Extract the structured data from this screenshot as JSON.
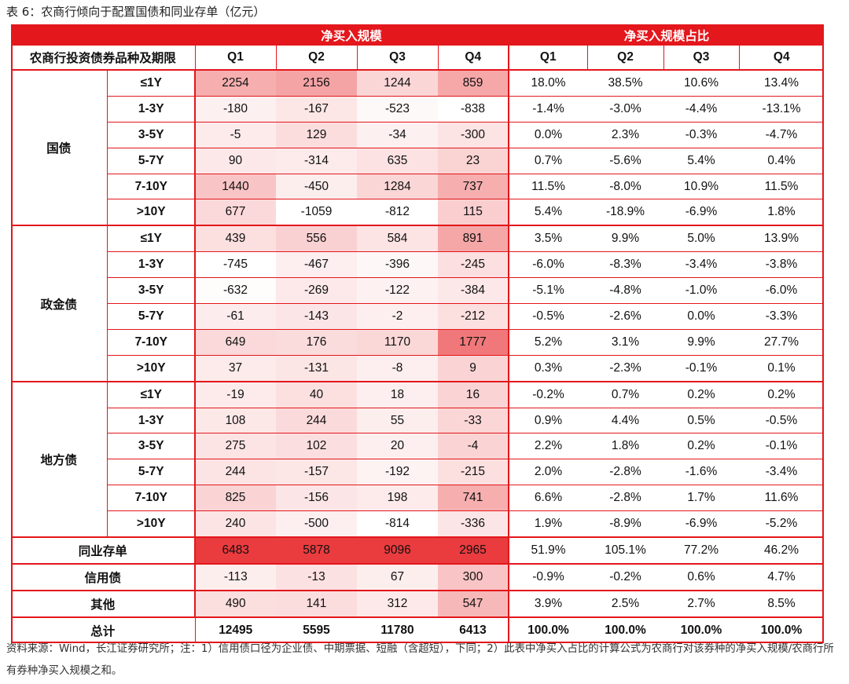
{
  "title": "表 6：农商行倾向于配置国债和同业存单（亿元）",
  "header": {
    "group_left": "净买入规模",
    "group_right": "净买入规模占比",
    "row_label": "农商行投资债券品种及期限",
    "quarters": [
      "Q1",
      "Q2",
      "Q3",
      "Q4"
    ]
  },
  "groups": [
    {
      "name": "国债",
      "rows": [
        {
          "term": "≤1Y",
          "values": [
            2254,
            2156,
            1244,
            859
          ],
          "shares": [
            "18.0%",
            "38.5%",
            "10.6%",
            "13.4%"
          ]
        },
        {
          "term": "1-3Y",
          "values": [
            -180,
            -167,
            -523,
            -838
          ],
          "shares": [
            "-1.4%",
            "-3.0%",
            "-4.4%",
            "-13.1%"
          ]
        },
        {
          "term": "3-5Y",
          "values": [
            -5,
            129,
            -34,
            -300
          ],
          "shares": [
            "0.0%",
            "2.3%",
            "-0.3%",
            "-4.7%"
          ]
        },
        {
          "term": "5-7Y",
          "values": [
            90,
            -314,
            635,
            23
          ],
          "shares": [
            "0.7%",
            "-5.6%",
            "5.4%",
            "0.4%"
          ]
        },
        {
          "term": "7-10Y",
          "values": [
            1440,
            -450,
            1284,
            737
          ],
          "shares": [
            "11.5%",
            "-8.0%",
            "10.9%",
            "11.5%"
          ]
        },
        {
          "term": ">10Y",
          "values": [
            677,
            -1059,
            -812,
            115
          ],
          "shares": [
            "5.4%",
            "-18.9%",
            "-6.9%",
            "1.8%"
          ]
        }
      ]
    },
    {
      "name": "政金债",
      "rows": [
        {
          "term": "≤1Y",
          "values": [
            439,
            556,
            584,
            891
          ],
          "shares": [
            "3.5%",
            "9.9%",
            "5.0%",
            "13.9%"
          ]
        },
        {
          "term": "1-3Y",
          "values": [
            -745,
            -467,
            -396,
            -245
          ],
          "shares": [
            "-6.0%",
            "-8.3%",
            "-3.4%",
            "-3.8%"
          ]
        },
        {
          "term": "3-5Y",
          "values": [
            -632,
            -269,
            -122,
            -384
          ],
          "shares": [
            "-5.1%",
            "-4.8%",
            "-1.0%",
            "-6.0%"
          ]
        },
        {
          "term": "5-7Y",
          "values": [
            -61,
            -143,
            -2,
            -212
          ],
          "shares": [
            "-0.5%",
            "-2.6%",
            "0.0%",
            "-3.3%"
          ]
        },
        {
          "term": "7-10Y",
          "values": [
            649,
            176,
            1170,
            1777
          ],
          "shares": [
            "5.2%",
            "3.1%",
            "9.9%",
            "27.7%"
          ]
        },
        {
          "term": ">10Y",
          "values": [
            37,
            -131,
            -8,
            9
          ],
          "shares": [
            "0.3%",
            "-2.3%",
            "-0.1%",
            "0.1%"
          ]
        }
      ]
    },
    {
      "name": "地方债",
      "rows": [
        {
          "term": "≤1Y",
          "values": [
            -19,
            40,
            18,
            16
          ],
          "shares": [
            "-0.2%",
            "0.7%",
            "0.2%",
            "0.2%"
          ]
        },
        {
          "term": "1-3Y",
          "values": [
            108,
            244,
            55,
            -33
          ],
          "shares": [
            "0.9%",
            "4.4%",
            "0.5%",
            "-0.5%"
          ]
        },
        {
          "term": "3-5Y",
          "values": [
            275,
            102,
            20,
            -4
          ],
          "shares": [
            "2.2%",
            "1.8%",
            "0.2%",
            "-0.1%"
          ]
        },
        {
          "term": "5-7Y",
          "values": [
            244,
            -157,
            -192,
            -215
          ],
          "shares": [
            "2.0%",
            "-2.8%",
            "-1.6%",
            "-3.4%"
          ]
        },
        {
          "term": "7-10Y",
          "values": [
            825,
            -156,
            198,
            741
          ],
          "shares": [
            "6.6%",
            "-2.8%",
            "1.7%",
            "11.6%"
          ]
        },
        {
          "term": ">10Y",
          "values": [
            240,
            -500,
            -814,
            -336
          ],
          "shares": [
            "1.9%",
            "-8.9%",
            "-6.9%",
            "-5.2%"
          ]
        }
      ]
    }
  ],
  "singles": [
    {
      "name": "同业存单",
      "values": [
        6483,
        5878,
        9096,
        2965
      ],
      "shares": [
        "51.9%",
        "105.1%",
        "77.2%",
        "46.2%"
      ]
    },
    {
      "name": "信用债",
      "values": [
        -113,
        -13,
        67,
        300
      ],
      "shares": [
        "-0.9%",
        "-0.2%",
        "0.6%",
        "4.7%"
      ]
    },
    {
      "name": "其他",
      "values": [
        490,
        141,
        312,
        547
      ],
      "shares": [
        "3.9%",
        "2.5%",
        "2.7%",
        "8.5%"
      ]
    }
  ],
  "total": {
    "name": "总计",
    "values": [
      12495,
      5595,
      11780,
      6413
    ],
    "shares": [
      "100.0%",
      "100.0%",
      "100.0%",
      "100.0%"
    ]
  },
  "colors": {
    "accent": "#e3171c",
    "heat_high": "#ea3b3e",
    "heat_low": "#ffffff"
  },
  "footer": "资料来源：Wind，长江证券研究所；注：1）信用债口径为企业债、中期票据、短融（含超短），下同；2）此表中净买入占比的计算公式为农商行对该券种的净买入规模/农商行所有券种净买入规模之和。"
}
